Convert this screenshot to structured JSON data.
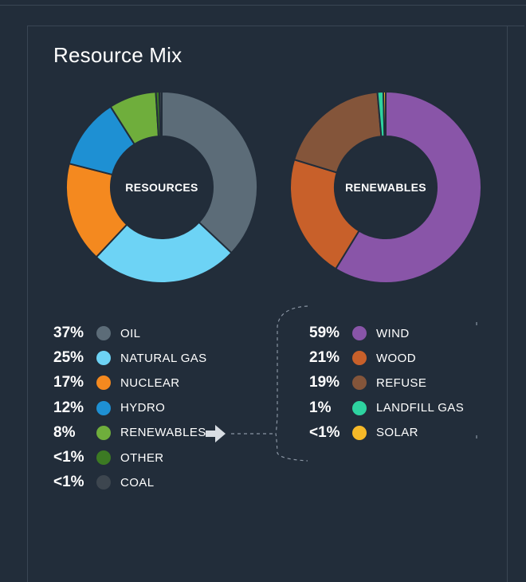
{
  "title": "Resource Mix",
  "chart_data": [
    {
      "type": "pie",
      "center_label": "RESOURCES",
      "slices": [
        {
          "label": "OIL",
          "value": 37,
          "value_label": "37%",
          "color": "#5c6c78"
        },
        {
          "label": "NATURAL GAS",
          "value": 25,
          "value_label": "25%",
          "color": "#6dd3f5"
        },
        {
          "label": "NUCLEAR",
          "value": 17,
          "value_label": "17%",
          "color": "#f4891f"
        },
        {
          "label": "HYDRO",
          "value": 12,
          "value_label": "12%",
          "color": "#1e90d3"
        },
        {
          "label": "RENEWABLES",
          "value": 8,
          "value_label": "8%",
          "color": "#6fae3c"
        },
        {
          "label": "OTHER",
          "value": 0.6,
          "value_label": "<1%",
          "color": "#3c7a23"
        },
        {
          "label": "COAL",
          "value": 0.4,
          "value_label": "<1%",
          "color": "#3d464f"
        }
      ]
    },
    {
      "type": "pie",
      "center_label": "RENEWABLES",
      "slices": [
        {
          "label": "WIND",
          "value": 59,
          "value_label": "59%",
          "color": "#8955a8"
        },
        {
          "label": "WOOD",
          "value": 21,
          "value_label": "21%",
          "color": "#c8602a"
        },
        {
          "label": "REFUSE",
          "value": 19,
          "value_label": "19%",
          "color": "#84553a"
        },
        {
          "label": "LANDFILL GAS",
          "value": 1,
          "value_label": "1%",
          "color": "#2ed3a0"
        },
        {
          "label": "SOLAR",
          "value": 0.4,
          "value_label": "<1%",
          "color": "#f6b928"
        }
      ]
    }
  ],
  "colors": {
    "background": "#222d3a",
    "slice_border": "#222d3a",
    "connector": "#8a95a3",
    "arrow": "#d8dde3"
  }
}
